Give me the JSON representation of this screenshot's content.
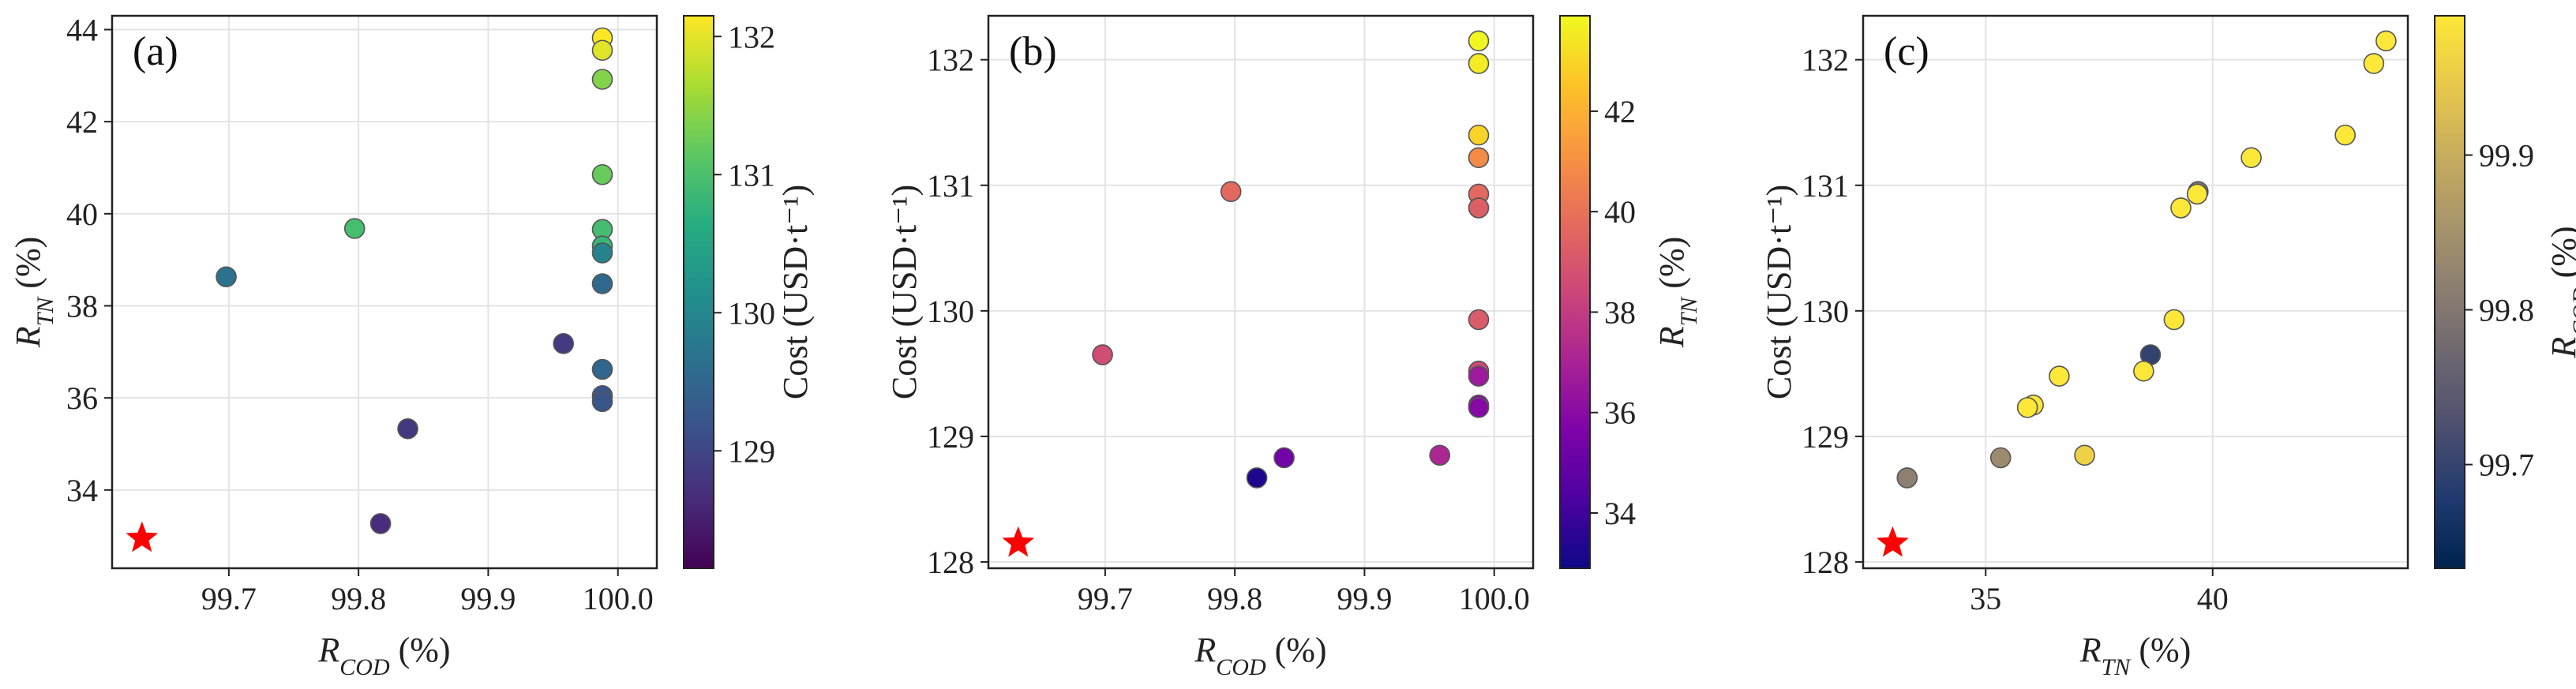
{
  "chart_data": [
    {
      "type": "scatter",
      "panel_label": "(a)",
      "xlabel": {
        "main": "R",
        "sub": "COD",
        "unit": " (%)"
      },
      "ylabel": {
        "main": "R",
        "sub": "TN",
        "unit": " (%)"
      },
      "xlim": [
        99.61,
        100.03
      ],
      "ylim": [
        32.3,
        44.3
      ],
      "xticks": [
        99.7,
        99.8,
        99.9,
        100.0
      ],
      "xtick_labels": [
        "99.7",
        "99.8",
        "99.9",
        "100.0"
      ],
      "yticks": [
        34,
        36,
        38,
        40,
        42,
        44
      ],
      "ytick_labels": [
        "34",
        "36",
        "38",
        "40",
        "42",
        "44"
      ],
      "grid": true,
      "colorbar": {
        "label": "Cost (USD·t⁻¹)",
        "colormap": "viridis",
        "range": [
          128.15,
          132.15
        ],
        "ticks": [
          129,
          130,
          131,
          132
        ],
        "tick_labels": [
          "129",
          "130",
          "131",
          "132"
        ]
      },
      "points": [
        {
          "x": 99.698,
          "y": 38.63,
          "c": 129.65
        },
        {
          "x": 99.797,
          "y": 39.68,
          "c": 130.95
        },
        {
          "x": 99.817,
          "y": 33.27,
          "c": 128.67
        },
        {
          "x": 99.838,
          "y": 35.33,
          "c": 128.83
        },
        {
          "x": 99.958,
          "y": 37.18,
          "c": 128.85
        },
        {
          "x": 99.988,
          "y": 43.82,
          "c": 132.15
        },
        {
          "x": 99.988,
          "y": 43.55,
          "c": 131.97
        },
        {
          "x": 99.988,
          "y": 42.92,
          "c": 131.4
        },
        {
          "x": 99.988,
          "y": 40.85,
          "c": 131.22
        },
        {
          "x": 99.988,
          "y": 39.66,
          "c": 130.93
        },
        {
          "x": 99.988,
          "y": 39.3,
          "c": 130.82
        },
        {
          "x": 99.988,
          "y": 39.15,
          "c": 129.93
        },
        {
          "x": 99.988,
          "y": 38.48,
          "c": 129.52
        },
        {
          "x": 99.988,
          "y": 36.62,
          "c": 129.48
        },
        {
          "x": 99.988,
          "y": 36.05,
          "c": 129.25
        },
        {
          "x": 99.988,
          "y": 35.92,
          "c": 129.23
        }
      ],
      "reference_point": {
        "x": 99.633,
        "y": 32.95,
        "marker": "star",
        "color": "#ff0000"
      }
    },
    {
      "type": "scatter",
      "panel_label": "(b)",
      "xlabel": {
        "main": "R",
        "sub": "COD",
        "unit": " (%)"
      },
      "ylabel": {
        "main": "Cost (USD·t⁻¹)",
        "sub": "",
        "unit": ""
      },
      "xlim": [
        99.61,
        100.03
      ],
      "ylim": [
        127.95,
        132.35
      ],
      "xticks": [
        99.7,
        99.8,
        99.9,
        100.0
      ],
      "xtick_labels": [
        "99.7",
        "99.8",
        "99.9",
        "100.0"
      ],
      "yticks": [
        128,
        129,
        130,
        131,
        132
      ],
      "ytick_labels": [
        "128",
        "129",
        "130",
        "131",
        "132"
      ],
      "grid": true,
      "colorbar": {
        "label": {
          "main": "R",
          "sub": "TN",
          "unit": " (%)"
        },
        "colormap": "plasma",
        "range": [
          32.9,
          43.9
        ],
        "ticks": [
          34,
          36,
          38,
          40,
          42
        ],
        "tick_labels": [
          "34",
          "36",
          "38",
          "40",
          "42"
        ]
      },
      "points": [
        {
          "x": 99.698,
          "y": 129.65,
          "c": 38.63
        },
        {
          "x": 99.797,
          "y": 130.95,
          "c": 39.68
        },
        {
          "x": 99.817,
          "y": 128.67,
          "c": 33.27
        },
        {
          "x": 99.838,
          "y": 128.83,
          "c": 35.33
        },
        {
          "x": 99.958,
          "y": 128.85,
          "c": 37.18
        },
        {
          "x": 99.988,
          "y": 132.15,
          "c": 43.82
        },
        {
          "x": 99.988,
          "y": 131.97,
          "c": 43.55
        },
        {
          "x": 99.988,
          "y": 131.4,
          "c": 42.92
        },
        {
          "x": 99.988,
          "y": 131.22,
          "c": 40.85
        },
        {
          "x": 99.988,
          "y": 130.93,
          "c": 39.66
        },
        {
          "x": 99.988,
          "y": 130.82,
          "c": 39.3
        },
        {
          "x": 99.988,
          "y": 129.93,
          "c": 39.15
        },
        {
          "x": 99.988,
          "y": 129.52,
          "c": 38.48
        },
        {
          "x": 99.988,
          "y": 129.48,
          "c": 36.62
        },
        {
          "x": 99.988,
          "y": 129.25,
          "c": 36.05
        },
        {
          "x": 99.988,
          "y": 129.23,
          "c": 35.92
        }
      ],
      "reference_point": {
        "x": 99.633,
        "y": 128.15,
        "marker": "star",
        "color": "#ff0000"
      }
    },
    {
      "type": "scatter",
      "panel_label": "(c)",
      "xlabel": {
        "main": "R",
        "sub": "TN",
        "unit": " (%)"
      },
      "ylabel": {
        "main": "Cost (USD·t⁻¹)",
        "sub": "",
        "unit": ""
      },
      "xlim": [
        32.3,
        44.3
      ],
      "ylim": [
        127.95,
        132.35
      ],
      "xticks": [
        35,
        40
      ],
      "xtick_labels": [
        "35",
        "40"
      ],
      "yticks": [
        128,
        129,
        130,
        131,
        132
      ],
      "ytick_labels": [
        "128",
        "129",
        "130",
        "131",
        "132"
      ],
      "grid": true,
      "colorbar": {
        "label": {
          "main": "R",
          "sub": "COD",
          "unit": " (%)"
        },
        "colormap": "cividis",
        "range": [
          99.633,
          99.99
        ],
        "ticks": [
          99.7,
          99.8,
          99.9
        ],
        "tick_labels": [
          "99.7",
          "99.8",
          "99.9"
        ]
      },
      "points": [
        {
          "x": 38.63,
          "y": 129.65,
          "c": 99.698
        },
        {
          "x": 39.68,
          "y": 130.95,
          "c": 99.797
        },
        {
          "x": 33.27,
          "y": 128.67,
          "c": 99.817
        },
        {
          "x": 35.33,
          "y": 128.83,
          "c": 99.838
        },
        {
          "x": 37.18,
          "y": 128.85,
          "c": 99.958
        },
        {
          "x": 43.82,
          "y": 132.15,
          "c": 99.988
        },
        {
          "x": 43.55,
          "y": 131.97,
          "c": 99.988
        },
        {
          "x": 42.92,
          "y": 131.4,
          "c": 99.988
        },
        {
          "x": 40.85,
          "y": 131.22,
          "c": 99.988
        },
        {
          "x": 39.66,
          "y": 130.93,
          "c": 99.988
        },
        {
          "x": 39.3,
          "y": 130.82,
          "c": 99.988
        },
        {
          "x": 39.15,
          "y": 129.93,
          "c": 99.988
        },
        {
          "x": 38.48,
          "y": 129.52,
          "c": 99.988
        },
        {
          "x": 36.62,
          "y": 129.48,
          "c": 99.988
        },
        {
          "x": 36.05,
          "y": 129.25,
          "c": 99.988
        },
        {
          "x": 35.92,
          "y": 129.23,
          "c": 99.988
        }
      ],
      "reference_point": {
        "x": 32.95,
        "y": 128.15,
        "marker": "star",
        "color": "#ff0000"
      }
    }
  ]
}
